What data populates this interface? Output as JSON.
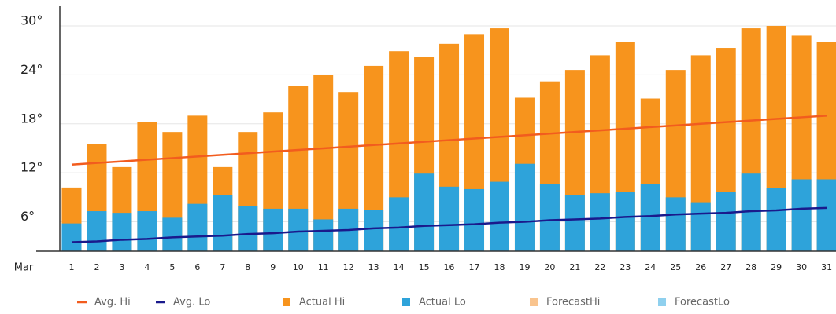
{
  "chart_data": {
    "type": "bar",
    "xlabel": "Mar",
    "categories": [
      "1",
      "2",
      "3",
      "4",
      "5",
      "6",
      "7",
      "8",
      "9",
      "10",
      "11",
      "12",
      "13",
      "14",
      "15",
      "16",
      "17",
      "18",
      "19",
      "20",
      "21",
      "22",
      "23",
      "24",
      "25",
      "26",
      "27",
      "28",
      "29",
      "30",
      "31"
    ],
    "ylim": [
      2.4,
      32.4
    ],
    "yticks": [
      {
        "value": 6,
        "label": "6°"
      },
      {
        "value": 12,
        "label": "12°"
      },
      {
        "value": 18,
        "label": "18°"
      },
      {
        "value": 24,
        "label": "24°"
      },
      {
        "value": 30,
        "label": "30°"
      }
    ],
    "grid": true,
    "series": [
      {
        "name": "Avg. Hi",
        "type": "line",
        "color": "#f25c1e",
        "values": [
          13.0,
          13.2,
          13.4,
          13.6,
          13.8,
          14.0,
          14.2,
          14.4,
          14.6,
          14.8,
          15.0,
          15.2,
          15.4,
          15.6,
          15.8,
          16.0,
          16.2,
          16.4,
          16.6,
          16.8,
          17.0,
          17.2,
          17.4,
          17.6,
          17.8,
          18.0,
          18.2,
          18.4,
          18.6,
          18.8,
          19.0
        ]
      },
      {
        "name": "Avg. Lo",
        "type": "line",
        "color": "#1a1a8c",
        "values": [
          3.5,
          3.6,
          3.8,
          3.9,
          4.1,
          4.2,
          4.3,
          4.5,
          4.6,
          4.8,
          4.9,
          5.0,
          5.2,
          5.3,
          5.5,
          5.6,
          5.7,
          5.9,
          6.0,
          6.2,
          6.3,
          6.4,
          6.6,
          6.7,
          6.9,
          7.0,
          7.1,
          7.3,
          7.4,
          7.6,
          7.7
        ]
      },
      {
        "name": "Actual Hi",
        "type": "bar",
        "color": "#f7941d",
        "values": [
          10.2,
          15.5,
          12.7,
          18.2,
          17.0,
          19.0,
          12.7,
          17.0,
          19.4,
          22.6,
          24.0,
          21.9,
          25.1,
          26.9,
          26.2,
          27.8,
          29.0,
          29.7,
          21.2,
          23.2,
          24.6,
          26.4,
          28.0,
          21.1,
          24.6,
          26.4,
          27.3,
          29.7,
          30.0,
          28.8,
          28.0
        ]
      },
      {
        "name": "Actual Lo",
        "type": "bar",
        "color": "#2ea3da",
        "values": [
          5.8,
          7.3,
          7.1,
          7.3,
          6.5,
          8.2,
          9.3,
          7.9,
          7.6,
          7.6,
          6.3,
          7.6,
          7.4,
          9.0,
          11.9,
          10.3,
          10.0,
          10.9,
          13.1,
          10.6,
          9.3,
          9.5,
          9.7,
          10.6,
          9.0,
          8.4,
          9.7,
          11.9,
          10.1,
          11.2,
          11.2
        ]
      },
      {
        "name": "ForecastHi",
        "type": "bar",
        "color": "#f9c48e",
        "values": [
          null,
          null,
          null,
          null,
          null,
          null,
          null,
          null,
          null,
          null,
          null,
          null,
          null,
          null,
          null,
          null,
          null,
          null,
          null,
          null,
          null,
          null,
          null,
          null,
          null,
          null,
          null,
          null,
          null,
          null,
          null
        ]
      },
      {
        "name": "ForecastLo",
        "type": "bar",
        "color": "#8fd0ee",
        "values": [
          null,
          null,
          null,
          null,
          null,
          null,
          null,
          null,
          null,
          null,
          null,
          null,
          null,
          null,
          null,
          null,
          null,
          null,
          null,
          null,
          null,
          null,
          null,
          null,
          null,
          null,
          null,
          null,
          null,
          null,
          null
        ]
      }
    ]
  }
}
